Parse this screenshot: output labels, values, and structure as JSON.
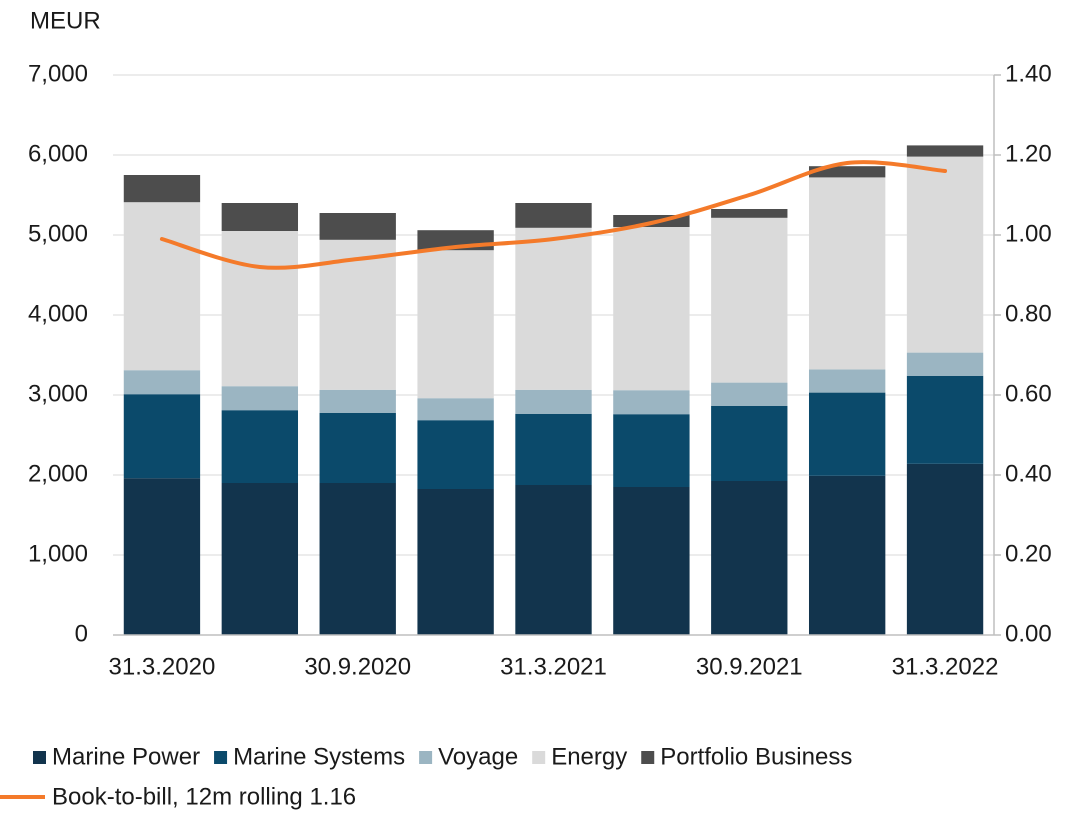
{
  "chart_data": {
    "type": "bar",
    "stacked": true,
    "y_label": "MEUR",
    "categories": [
      "31.3.2020",
      null,
      "30.9.2020",
      null,
      "31.3.2021",
      null,
      "30.9.2021",
      null,
      "31.3.2022"
    ],
    "series": [
      {
        "name": "Marine Power",
        "color": "#12344d",
        "values": [
          1960,
          1900,
          1900,
          1825,
          1875,
          1850,
          1925,
          1990,
          2140
        ]
      },
      {
        "name": "Marine Systems",
        "color": "#0b4a6b",
        "values": [
          1050,
          910,
          875,
          860,
          890,
          910,
          940,
          1040,
          1100
        ]
      },
      {
        "name": "Voyage",
        "color": "#9bb5c2",
        "values": [
          300,
          300,
          290,
          275,
          300,
          300,
          290,
          290,
          290
        ]
      },
      {
        "name": "Energy",
        "color": "#dadada",
        "values": [
          2100,
          1940,
          1875,
          1850,
          2025,
          2040,
          2060,
          2400,
          2450
        ]
      },
      {
        "name": "Portfolio Business",
        "color": "#4d4d4d",
        "values": [
          340,
          350,
          335,
          250,
          310,
          150,
          110,
          140,
          140
        ]
      },
      {
        "name": "Book-to-bill, 12m rolling 1.16",
        "color": "#f47a2a",
        "type": "line",
        "axis": "y2",
        "values": [
          0.99,
          0.92,
          0.94,
          0.97,
          0.99,
          1.03,
          1.1,
          1.18,
          1.16
        ]
      }
    ],
    "ylim": [
      0,
      7000
    ],
    "yticks": [
      0,
      {
        "value": 1000,
        "label": "1,000"
      },
      {
        "value": 2000,
        "label": "2,000"
      },
      {
        "value": 3000,
        "label": "3,000"
      },
      {
        "value": 4000,
        "label": "4,000"
      },
      {
        "value": 5000,
        "label": "5,000"
      },
      {
        "value": 6000,
        "label": "6,000"
      },
      {
        "value": 7000,
        "label": "7,000"
      }
    ],
    "y2lim": [
      0,
      1.4
    ],
    "y2ticks": [
      {
        "value": 0,
        "label": "0.00"
      },
      {
        "value": 0.2,
        "label": "0.20"
      },
      {
        "value": 0.4,
        "label": "0.40"
      },
      {
        "value": 0.6,
        "label": "0.60"
      },
      {
        "value": 0.8,
        "label": "0.80"
      },
      {
        "value": 1.0,
        "label": "1.00"
      },
      {
        "value": 1.2,
        "label": "1.20"
      },
      {
        "value": 1.4,
        "label": "1.40"
      }
    ],
    "grid": true
  }
}
